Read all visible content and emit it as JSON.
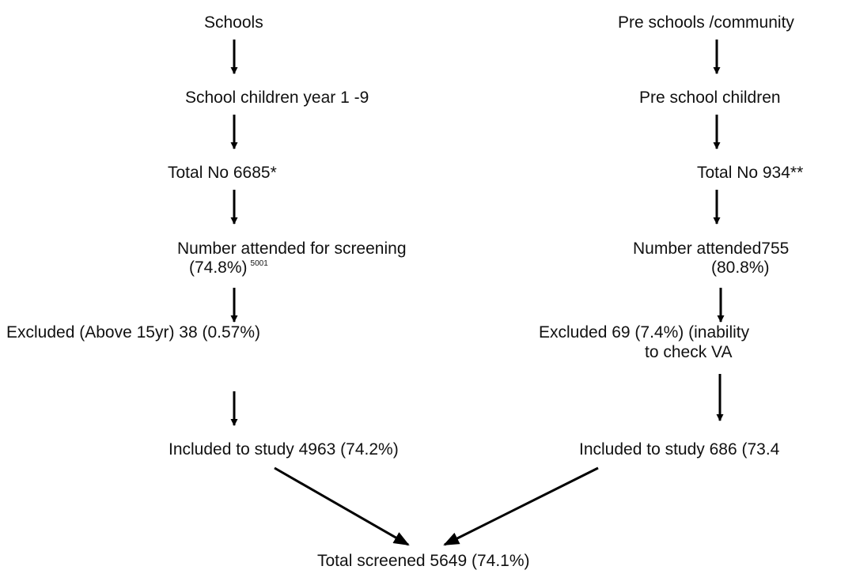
{
  "left": {
    "n1": "Schools",
    "n2": "School children year 1 -9",
    "n3": "Total No 6685*",
    "n4_line1": "Number attended for screening",
    "n4_line2": "(74.8%)",
    "n4_sup": "5001",
    "n5": "Excluded (Above 15yr) 38 (0.57%)",
    "n6": "Included to study 4963 (74.2%)"
  },
  "right": {
    "n1": "Pre schools /community",
    "n2": "Pre school children",
    "n3": "Total No 934**",
    "n4_line1": "Number attended755",
    "n4_line2": "(80.8%)",
    "n5_line1": "Excluded 69 (7.4%) (inability",
    "n5_line2": "to check VA",
    "n6": "Included to study 686 (73.4"
  },
  "bottom": {
    "total": "Total screened 5649 (74.1%)"
  }
}
